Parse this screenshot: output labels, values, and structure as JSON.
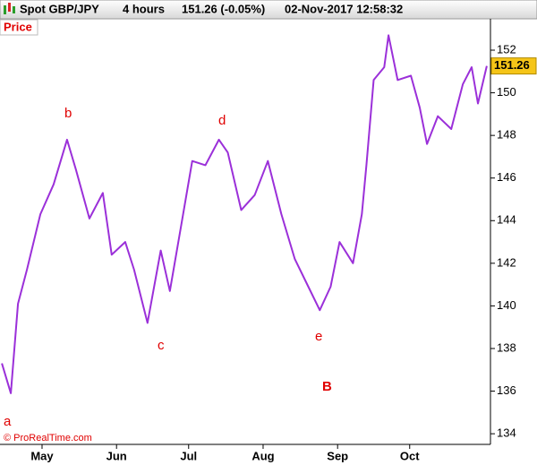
{
  "chart_data": {
    "type": "line",
    "instrument": "Spot GBP/JPY",
    "timeframe": "4 hours",
    "change": "151.26 (-0.05%)",
    "timestamp": "02-Nov-2017 12:58:32",
    "panel_label": "Price",
    "credit": "© ProRealTime.com",
    "annotations": [
      "a",
      "b",
      "c",
      "d",
      "e",
      "B"
    ],
    "last_price": 151.26,
    "x": [
      -16.7,
      -13,
      -10,
      -6.3,
      -0.7,
      4.8,
      10.4,
      14.1,
      19.7,
      25.3,
      29,
      34.6,
      38.3,
      43.9,
      49.4,
      53.2,
      58.7,
      62.5,
      68,
      73.6,
      77.3,
      82.9,
      88.5,
      94,
      99.6,
      105.2,
      110.8,
      115.6,
      120.1,
      123.8,
      129.4,
      133.1,
      135,
      138,
      142.4,
      144.2,
      148,
      153.5,
      157.2,
      160.2,
      164.7,
      170.3,
      175.1,
      178.8,
      181.4,
      185.1
    ],
    "series": [
      {
        "name": "GBP/JPY",
        "color": "#9b30d9",
        "values": [
          137.3,
          135.9,
          140.1,
          141.7,
          144.3,
          145.7,
          147.8,
          146.4,
          144.1,
          145.3,
          142.4,
          143,
          141.7,
          139.2,
          142.6,
          140.7,
          144.3,
          146.8,
          146.6,
          147.8,
          147.2,
          144.5,
          145.2,
          146.8,
          144.3,
          142.2,
          140.9,
          139.8,
          140.9,
          143,
          142,
          144.3,
          146.6,
          150.6,
          151.2,
          152.7,
          150.6,
          150.8,
          149.3,
          147.6,
          148.9,
          148.3,
          150.4,
          151.2,
          149.5,
          151.26
        ]
      }
    ],
    "xlim": [
      -17.5,
      185.5
    ],
    "xticks": [
      {
        "value": 0,
        "label": "May"
      },
      {
        "value": 31,
        "label": "Jun"
      },
      {
        "value": 61,
        "label": "Jul"
      },
      {
        "value": 92,
        "label": "Aug"
      },
      {
        "value": 123,
        "label": "Sep"
      },
      {
        "value": 153,
        "label": "Oct"
      }
    ],
    "ylim": [
      133.5,
      153.43
    ],
    "yticks": [
      134,
      136,
      138,
      140,
      142,
      144,
      146,
      148,
      150,
      152
    ]
  }
}
